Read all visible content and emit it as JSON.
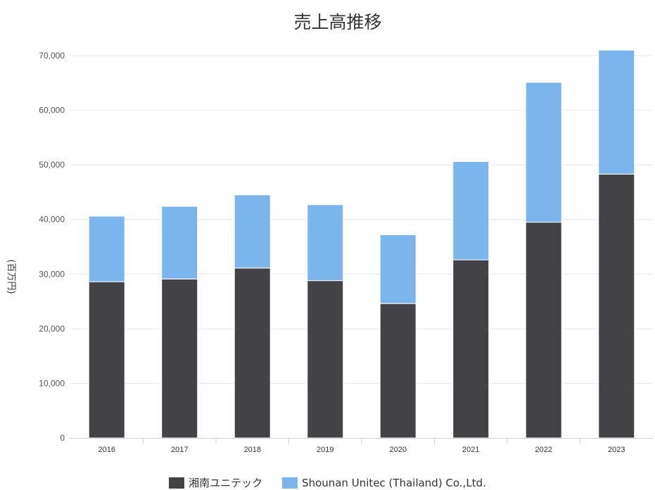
{
  "chart_data": {
    "type": "bar",
    "stacked": true,
    "title": "売上高推移",
    "ylabel": "(百万円)",
    "xlabel": "",
    "categories": [
      "2016",
      "2017",
      "2018",
      "2019",
      "2020",
      "2021",
      "2022",
      "2023"
    ],
    "series": [
      {
        "name": "湘南ユニテック",
        "color": "#434347",
        "values": [
          28600,
          29100,
          31100,
          28800,
          24600,
          32600,
          39500,
          48300
        ]
      },
      {
        "name": "Shounan Unitec (Thailand) Co.,Ltd.",
        "color": "#7cb5ec",
        "values": [
          12000,
          13300,
          13400,
          13900,
          12600,
          18000,
          25600,
          22700
        ]
      }
    ],
    "ylim": [
      0,
      70000
    ],
    "yticks": [
      "0",
      "10,000",
      "20,000",
      "30,000",
      "40,000",
      "50,000",
      "60,000",
      "70,000"
    ],
    "grid": true,
    "legend_position": "bottom"
  }
}
